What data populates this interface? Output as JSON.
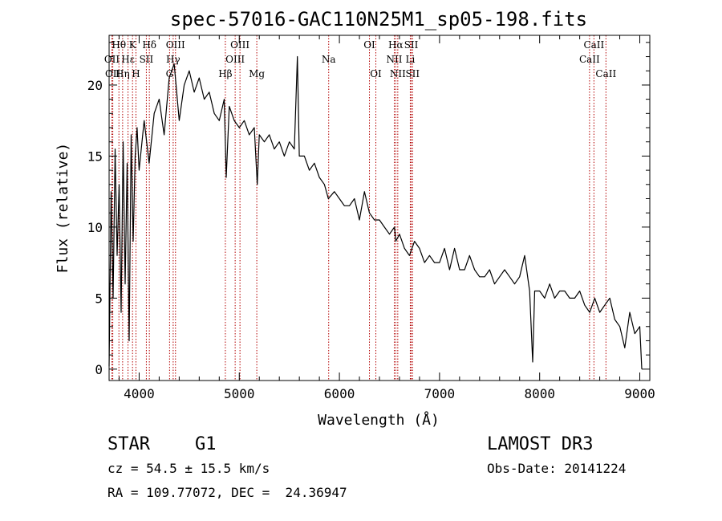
{
  "chart_data": {
    "type": "line",
    "title": "spec-57016-GAC110N25M1_sp05-198.fits",
    "xlabel": "Wavelength (Å)",
    "ylabel": "Flux (relative)",
    "xlim": [
      3700,
      9100
    ],
    "ylim": [
      -0.8,
      23.5
    ],
    "xticks": [
      4000,
      5000,
      6000,
      7000,
      8000,
      9000
    ],
    "yticks": [
      0,
      5,
      10,
      15,
      20
    ],
    "grid": false,
    "series": [
      {
        "name": "flux",
        "x": [
          3700,
          3720,
          3740,
          3760,
          3780,
          3800,
          3820,
          3840,
          3860,
          3880,
          3900,
          3920,
          3940,
          3960,
          3980,
          4000,
          4050,
          4100,
          4150,
          4200,
          4250,
          4300,
          4350,
          4400,
          4450,
          4500,
          4550,
          4600,
          4650,
          4700,
          4750,
          4800,
          4850,
          4870,
          4900,
          4950,
          5000,
          5050,
          5100,
          5150,
          5180,
          5200,
          5250,
          5300,
          5350,
          5400,
          5450,
          5500,
          5550,
          5580,
          5600,
          5650,
          5700,
          5750,
          5800,
          5850,
          5890,
          5950,
          6000,
          6050,
          6100,
          6150,
          6200,
          6250,
          6300,
          6350,
          6400,
          6450,
          6500,
          6550,
          6563,
          6600,
          6650,
          6700,
          6750,
          6800,
          6850,
          6900,
          6950,
          7000,
          7050,
          7100,
          7150,
          7200,
          7250,
          7300,
          7350,
          7400,
          7450,
          7500,
          7550,
          7600,
          7650,
          7700,
          7750,
          7800,
          7850,
          7900,
          7930,
          7950,
          8000,
          8050,
          8100,
          8150,
          8200,
          8250,
          8300,
          8350,
          8400,
          8450,
          8500,
          8550,
          8600,
          8650,
          8700,
          8750,
          8800,
          8850,
          8900,
          8950,
          9000,
          9020
        ],
        "values": [
          0.2,
          12.5,
          5.0,
          15.5,
          8.0,
          13.0,
          4.0,
          16.0,
          6.0,
          14.5,
          2.0,
          16.5,
          9.0,
          15.0,
          17.0,
          14.0,
          17.5,
          14.5,
          18.0,
          19.0,
          16.5,
          20.5,
          21.5,
          17.5,
          20.0,
          21.0,
          19.5,
          20.5,
          19.0,
          19.5,
          18.0,
          17.5,
          19.0,
          13.5,
          18.5,
          17.5,
          17.0,
          17.5,
          16.5,
          17.0,
          13.0,
          16.5,
          16.0,
          16.5,
          15.5,
          16.0,
          15.0,
          16.0,
          15.5,
          22.0,
          15.0,
          15.0,
          14.0,
          14.5,
          13.5,
          13.0,
          12.0,
          12.5,
          12.0,
          11.5,
          11.5,
          12.0,
          10.5,
          12.5,
          11.0,
          10.5,
          10.5,
          10.0,
          9.5,
          10.0,
          9.0,
          9.5,
          8.5,
          8.0,
          9.0,
          8.5,
          7.5,
          8.0,
          7.5,
          7.5,
          8.5,
          7.0,
          8.5,
          7.0,
          7.0,
          8.0,
          7.0,
          6.5,
          6.5,
          7.0,
          6.0,
          6.5,
          7.0,
          6.5,
          6.0,
          6.5,
          8.0,
          5.5,
          0.5,
          5.5,
          5.5,
          5.0,
          6.0,
          5.0,
          5.5,
          5.5,
          5.0,
          5.0,
          5.5,
          4.5,
          4.0,
          5.0,
          4.0,
          4.5,
          5.0,
          3.5,
          3.0,
          1.5,
          4.0,
          2.5,
          3.0,
          0.0
        ]
      }
    ],
    "lines": [
      {
        "label": "Hθ",
        "x": 3798,
        "row": 1
      },
      {
        "label": "OII",
        "x": 3728,
        "row": 2
      },
      {
        "label": "OII",
        "x": 3737,
        "row": 3
      },
      {
        "label": "Hη",
        "x": 3835,
        "row": 3
      },
      {
        "label": "K",
        "x": 3934,
        "row": 1
      },
      {
        "label": "Hε",
        "x": 3889,
        "row": 2
      },
      {
        "label": "SII",
        "x": 4072,
        "row": 2
      },
      {
        "label": "H",
        "x": 3968,
        "row": 3
      },
      {
        "label": "Hδ",
        "x": 4102,
        "row": 1
      },
      {
        "label": "OIII",
        "x": 4363,
        "row": 1
      },
      {
        "label": "Hγ",
        "x": 4340,
        "row": 2
      },
      {
        "label": "G",
        "x": 4304,
        "row": 3
      },
      {
        "label": "OIII",
        "x": 5007,
        "row": 1
      },
      {
        "label": "OIII",
        "x": 4959,
        "row": 2
      },
      {
        "label": "Hβ",
        "x": 4861,
        "row": 3
      },
      {
        "label": "Mg",
        "x": 5175,
        "row": 3
      },
      {
        "label": "Na",
        "x": 5893,
        "row": 2
      },
      {
        "label": "OI",
        "x": 6300,
        "row": 1
      },
      {
        "label": "OI",
        "x": 6364,
        "row": 3
      },
      {
        "label": "Hα",
        "x": 6563,
        "row": 1
      },
      {
        "label": "SII",
        "x": 6717,
        "row": 1
      },
      {
        "label": "NII",
        "x": 6548,
        "row": 2
      },
      {
        "label": "Li",
        "x": 6708,
        "row": 2
      },
      {
        "label": "NII",
        "x": 6583,
        "row": 3
      },
      {
        "label": "SII",
        "x": 6731,
        "row": 3
      },
      {
        "label": "CaII",
        "x": 8542,
        "row": 1
      },
      {
        "label": "CaII",
        "x": 8498,
        "row": 2
      },
      {
        "label": "CaII",
        "x": 8662,
        "row": 3
      }
    ]
  },
  "info": {
    "class_label": "STAR",
    "subclass": "G1",
    "survey": "LAMOST DR3",
    "cz": "cz = 54.5 ± 15.5 km/s",
    "obs_date": "Obs-Date: 20141224",
    "coords": "RA = 109.77072, DEC =  24.36947"
  },
  "colors": {
    "line": "#000000",
    "marker": "#b30000"
  }
}
